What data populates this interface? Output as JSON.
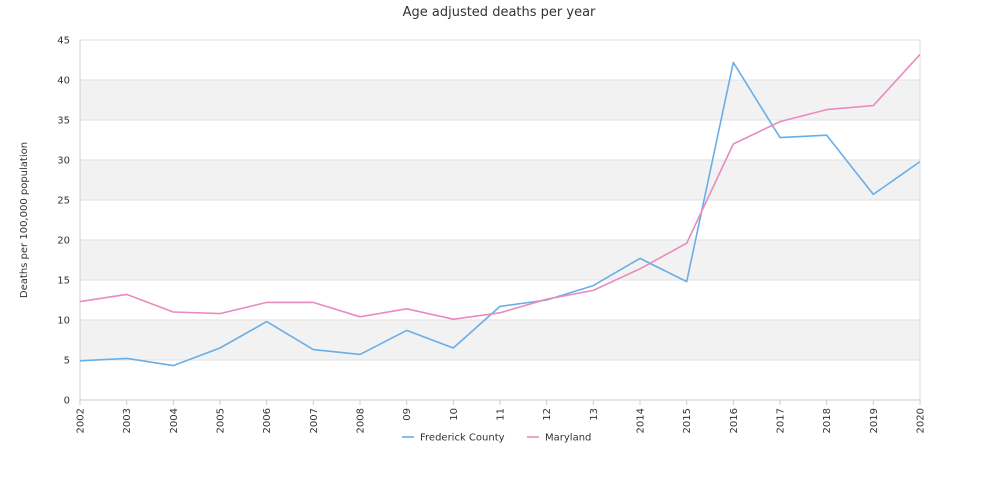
{
  "chart_data": {
    "type": "line",
    "title": "Age adjusted deaths per year",
    "xlabel": "",
    "ylabel": "Deaths per 100,000 population",
    "x": [
      "2002",
      "2003",
      "2004",
      "2005",
      "2006",
      "2007",
      "2008",
      "09",
      "10",
      "11",
      "12",
      "13",
      "2014",
      "2015",
      "2016",
      "2017",
      "2018",
      "2019",
      "2020"
    ],
    "ylim": [
      0,
      45
    ],
    "yticks": [
      0,
      5,
      10,
      15,
      20,
      25,
      30,
      35,
      40,
      45
    ],
    "grid": "horizontal bands",
    "legend_position": "bottom",
    "series": [
      {
        "name": "Frederick County",
        "color": "#6aaee8",
        "values": [
          4.9,
          5.2,
          4.3,
          6.5,
          9.8,
          6.3,
          5.7,
          8.7,
          6.5,
          11.7,
          12.5,
          14.3,
          17.7,
          14.8,
          42.2,
          32.8,
          33.1,
          25.7,
          29.8
        ]
      },
      {
        "name": "Maryland",
        "color": "#e88cbf",
        "values": [
          12.3,
          13.2,
          11.0,
          10.8,
          12.2,
          12.2,
          10.4,
          11.4,
          10.1,
          10.9,
          12.6,
          13.7,
          16.4,
          19.6,
          32.0,
          34.8,
          36.3,
          36.8,
          43.2
        ]
      }
    ]
  }
}
